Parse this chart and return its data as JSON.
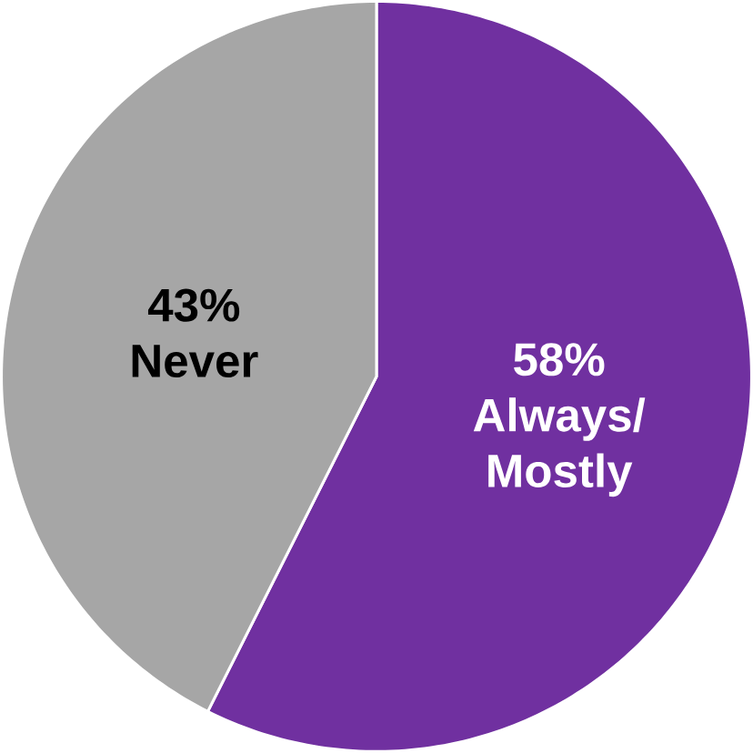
{
  "chart_data": {
    "type": "pie",
    "categories": [
      "Always/ Mostly",
      "Never"
    ],
    "values": [
      58,
      43
    ],
    "value_labels": [
      "58%",
      "43%"
    ],
    "colors": [
      "#7030a0",
      "#a6a6a6"
    ]
  }
}
